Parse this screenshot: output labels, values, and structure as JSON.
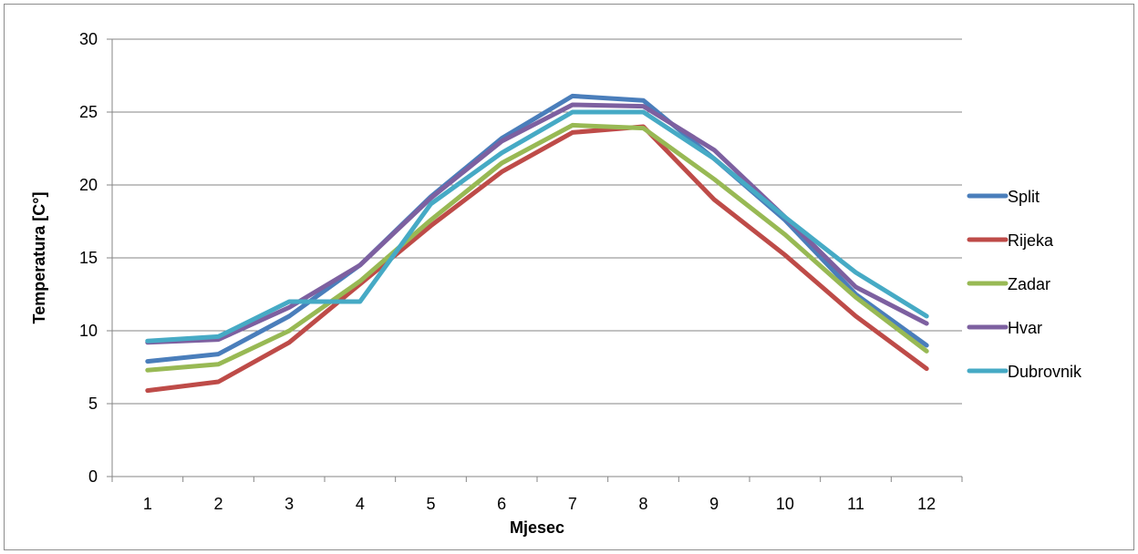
{
  "chart_data": {
    "type": "line",
    "title": "",
    "xlabel": "Mjesec",
    "ylabel": "Temperatura [C°]",
    "categories": [
      "1",
      "2",
      "3",
      "4",
      "5",
      "6",
      "7",
      "8",
      "9",
      "10",
      "11",
      "12"
    ],
    "ylim": [
      0,
      30
    ],
    "yticks": [
      "0",
      "5",
      "10",
      "15",
      "20",
      "25",
      "30"
    ],
    "grid": "horizontal major gridlines",
    "legend_position": "right",
    "series": [
      {
        "name": "Split",
        "color": "#4a7ebb",
        "values": [
          7.9,
          8.4,
          11.0,
          14.5,
          19.2,
          23.2,
          26.1,
          25.8,
          21.8,
          17.6,
          12.5,
          9.0
        ]
      },
      {
        "name": "Rijeka",
        "color": "#be4b48",
        "values": [
          5.9,
          6.5,
          9.2,
          13.2,
          17.2,
          20.9,
          23.6,
          24.0,
          19.0,
          15.2,
          11.0,
          7.4
        ]
      },
      {
        "name": "Zadar",
        "color": "#98b954",
        "values": [
          7.3,
          7.7,
          10.0,
          13.4,
          17.6,
          21.5,
          24.1,
          23.9,
          20.4,
          16.6,
          12.3,
          8.6
        ]
      },
      {
        "name": "Hvar",
        "color": "#7d60a0",
        "values": [
          9.2,
          9.4,
          11.6,
          14.5,
          19.1,
          23.0,
          25.5,
          25.4,
          22.4,
          17.8,
          13.0,
          10.5
        ]
      },
      {
        "name": "Dubrovnik",
        "color": "#46aac5",
        "values": [
          9.3,
          9.6,
          12.0,
          12.0,
          18.7,
          22.2,
          25.0,
          25.0,
          21.8,
          17.8,
          14.0,
          11.0
        ]
      }
    ]
  }
}
